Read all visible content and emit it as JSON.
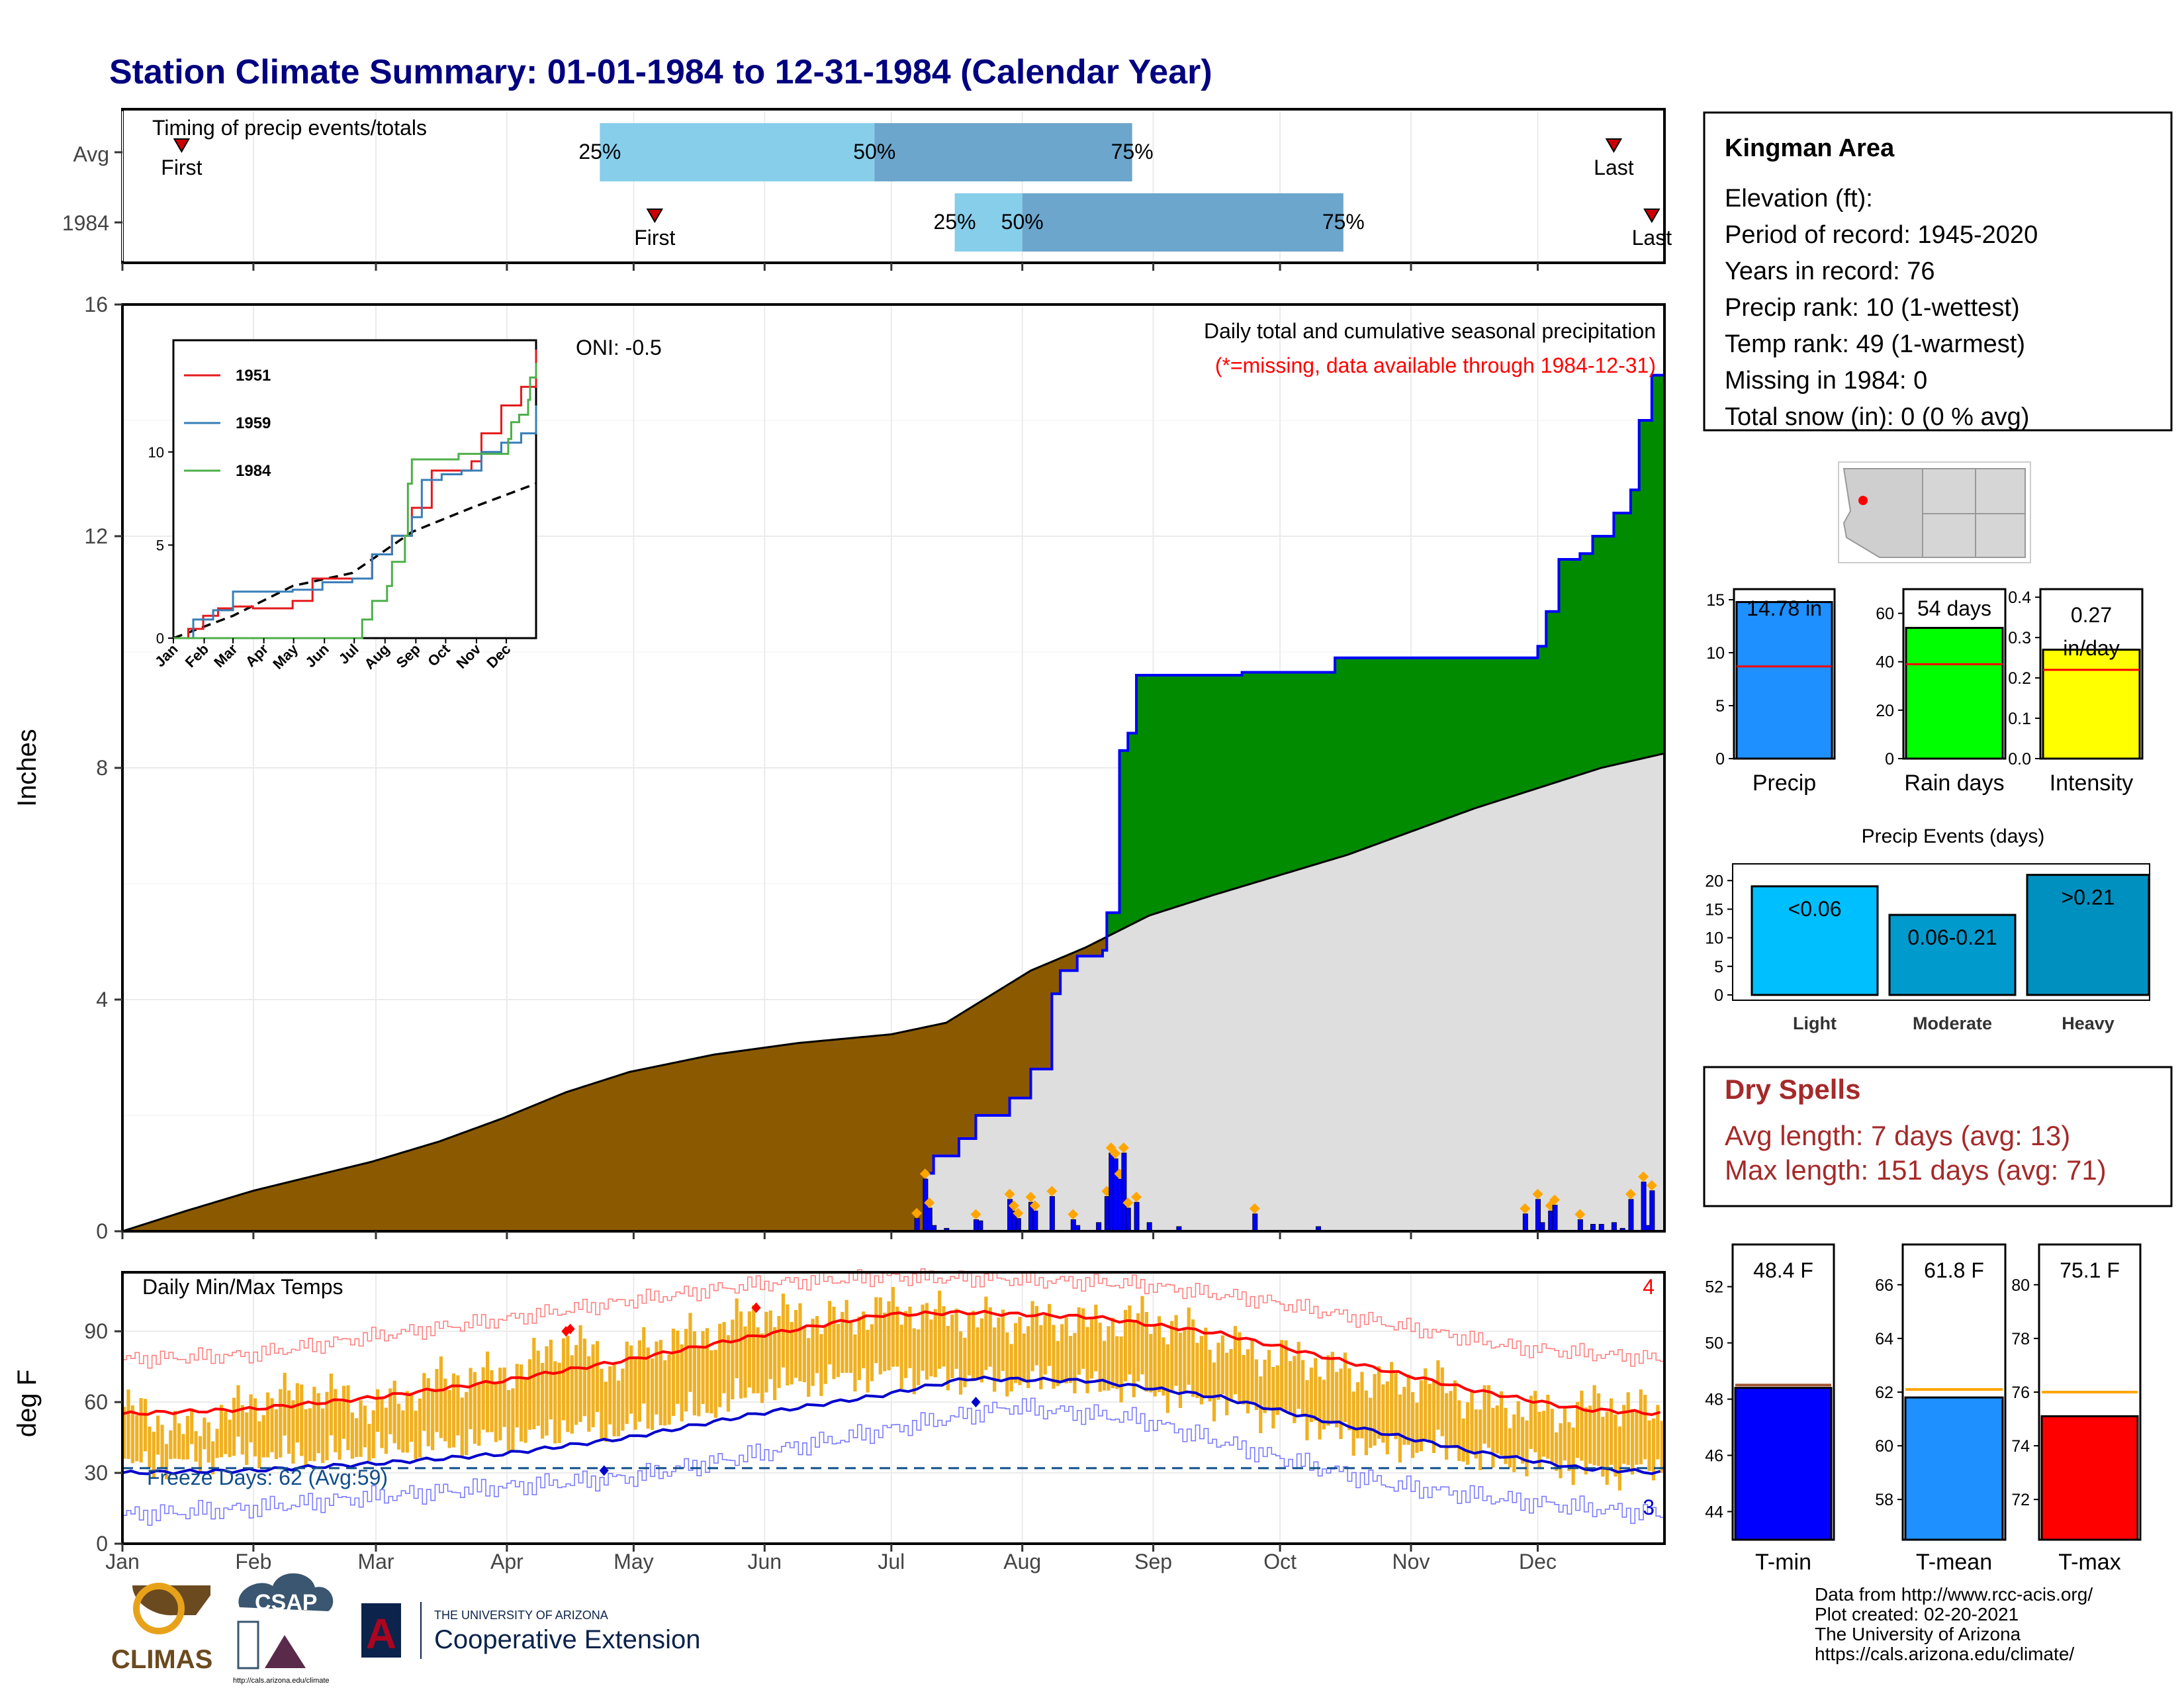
{
  "title": "Station Climate Summary: 01-01-1984 to 12-31-1984 (Calendar Year)",
  "months": [
    "Jan",
    "Feb",
    "Mar",
    "Apr",
    "May",
    "Jun",
    "Jul",
    "Aug",
    "Sep",
    "Oct",
    "Nov",
    "Dec"
  ],
  "timing": {
    "label": "Timing of precip events/totals",
    "rows": [
      {
        "name": "Avg",
        "first_doy": 14,
        "p25_doy": 113,
        "p50_doy": 178,
        "p75_doy": 239,
        "last_doy": 353,
        "first_label": "First",
        "last_label": "Last",
        "p25_label": "25%",
        "p50_label": "50%",
        "p75_label": "75%"
      },
      {
        "name": "1984",
        "first_doy": 126,
        "p25_doy": 197,
        "p50_doy": 213,
        "p75_doy": 289,
        "last_doy": 362,
        "first_label": "First",
        "last_label": "Last",
        "p25_label": "25%",
        "p50_label": "50%",
        "p75_label": "75%"
      }
    ]
  },
  "precip": {
    "ylabel": "Inches",
    "ylim": [
      0,
      16
    ],
    "yticks": [
      0,
      4,
      8,
      12,
      16
    ],
    "oni": "ONI: -0.5",
    "subtitle": "Daily total and cumulative seasonal precipitation",
    "missing_note": "(*=missing, data available through 1984-12-31)",
    "avg_cumulative": [
      [
        0,
        0
      ],
      [
        15,
        0.35
      ],
      [
        31,
        0.7
      ],
      [
        45,
        0.95
      ],
      [
        59,
        1.2
      ],
      [
        75,
        1.55
      ],
      [
        90,
        1.95
      ],
      [
        105,
        2.4
      ],
      [
        120,
        2.75
      ],
      [
        140,
        3.05
      ],
      [
        160,
        3.25
      ],
      [
        182,
        3.4
      ],
      [
        195,
        3.6
      ],
      [
        205,
        4.05
      ],
      [
        215,
        4.5
      ],
      [
        228,
        4.9
      ],
      [
        243,
        5.45
      ],
      [
        258,
        5.8
      ],
      [
        274,
        6.15
      ],
      [
        290,
        6.5
      ],
      [
        305,
        6.9
      ],
      [
        320,
        7.3
      ],
      [
        335,
        7.65
      ],
      [
        350,
        8.0
      ],
      [
        365,
        8.25
      ]
    ],
    "cumulative_1984": [
      [
        0,
        0
      ],
      [
        188,
        0
      ],
      [
        190,
        1.0
      ],
      [
        192,
        1.3
      ],
      [
        198,
        1.6
      ],
      [
        202,
        2.0
      ],
      [
        210,
        2.3
      ],
      [
        215,
        2.8
      ],
      [
        220,
        4.1
      ],
      [
        222,
        4.5
      ],
      [
        226,
        4.75
      ],
      [
        232,
        4.85
      ],
      [
        233,
        5.5
      ],
      [
        236,
        8.3
      ],
      [
        238,
        8.6
      ],
      [
        240,
        9.6
      ],
      [
        250,
        9.6
      ],
      [
        265,
        9.65
      ],
      [
        287,
        9.9
      ],
      [
        320,
        9.9
      ],
      [
        335,
        10.1
      ],
      [
        337,
        10.7
      ],
      [
        340,
        11.6
      ],
      [
        345,
        11.7
      ],
      [
        348,
        12.0
      ],
      [
        353,
        12.4
      ],
      [
        357,
        12.8
      ],
      [
        359,
        14.0
      ],
      [
        362,
        14.78
      ],
      [
        365,
        14.78
      ]
    ],
    "daily_bars": [
      [
        188,
        0.22
      ],
      [
        190,
        0.9
      ],
      [
        191,
        0.4
      ],
      [
        192,
        0.1
      ],
      [
        195,
        0.05
      ],
      [
        202,
        0.2
      ],
      [
        203,
        0.18
      ],
      [
        210,
        0.55
      ],
      [
        211,
        0.35
      ],
      [
        212,
        0.22
      ],
      [
        215,
        0.5
      ],
      [
        216,
        0.35
      ],
      [
        220,
        0.6
      ],
      [
        225,
        0.2
      ],
      [
        226,
        0.1
      ],
      [
        231,
        0.15
      ],
      [
        233,
        0.6
      ],
      [
        234,
        1.35
      ],
      [
        235,
        1.25
      ],
      [
        236,
        0.9
      ],
      [
        237,
        1.35
      ],
      [
        238,
        0.4
      ],
      [
        240,
        0.5
      ],
      [
        243,
        0.15
      ],
      [
        250,
        0.08
      ],
      [
        268,
        0.3
      ],
      [
        283,
        0.08
      ],
      [
        332,
        0.3
      ],
      [
        335,
        0.55
      ],
      [
        336,
        0.15
      ],
      [
        338,
        0.35
      ],
      [
        339,
        0.45
      ],
      [
        345,
        0.2
      ],
      [
        348,
        0.12
      ],
      [
        350,
        0.12
      ],
      [
        353,
        0.15
      ],
      [
        355,
        0.05
      ],
      [
        357,
        0.55
      ],
      [
        360,
        0.85
      ],
      [
        361,
        0.1
      ],
      [
        362,
        0.7
      ]
    ],
    "inset": {
      "ylim": [
        0,
        16
      ],
      "yticks": [
        0,
        5,
        10
      ],
      "avg": [
        [
          0,
          0
        ],
        [
          60,
          1.2
        ],
        [
          120,
          2.8
        ],
        [
          180,
          3.5
        ],
        [
          240,
          5.7
        ],
        [
          300,
          7.0
        ],
        [
          365,
          8.3
        ]
      ],
      "series": [
        {
          "name": "1951",
          "color": "#e41a1c",
          "points": [
            [
              0,
              0
            ],
            [
              15,
              0.5
            ],
            [
              30,
              1.2
            ],
            [
              45,
              1.6
            ],
            [
              60,
              1.7
            ],
            [
              80,
              1.6
            ],
            [
              100,
              1.6
            ],
            [
              120,
              2.0
            ],
            [
              140,
              3.2
            ],
            [
              180,
              3.2
            ],
            [
              200,
              4.5
            ],
            [
              220,
              5.5
            ],
            [
              240,
              7.0
            ],
            [
              260,
              9.0
            ],
            [
              300,
              9.5
            ],
            [
              310,
              11.0
            ],
            [
              330,
              12.5
            ],
            [
              350,
              13.5
            ],
            [
              365,
              15.5
            ]
          ]
        },
        {
          "name": "1959",
          "color": "#377eb8",
          "points": [
            [
              0,
              0
            ],
            [
              20,
              1.0
            ],
            [
              40,
              1.5
            ],
            [
              60,
              2.5
            ],
            [
              80,
              2.5
            ],
            [
              100,
              2.5
            ],
            [
              120,
              2.6
            ],
            [
              150,
              3.0
            ],
            [
              180,
              3.2
            ],
            [
              200,
              4.5
            ],
            [
              220,
              5.5
            ],
            [
              240,
              6.5
            ],
            [
              250,
              8.5
            ],
            [
              270,
              8.8
            ],
            [
              290,
              9.0
            ],
            [
              310,
              10.0
            ],
            [
              330,
              10.5
            ],
            [
              350,
              11.0
            ],
            [
              365,
              12.5
            ]
          ]
        },
        {
          "name": "1984",
          "color": "#4daf4a",
          "points": [
            [
              0,
              0
            ],
            [
              188,
              0
            ],
            [
              190,
              1.0
            ],
            [
              200,
              2.0
            ],
            [
              215,
              2.8
            ],
            [
              220,
              4.1
            ],
            [
              233,
              5.5
            ],
            [
              236,
              8.3
            ],
            [
              240,
              9.6
            ],
            [
              250,
              9.6
            ],
            [
              287,
              9.9
            ],
            [
              320,
              9.9
            ],
            [
              337,
              10.7
            ],
            [
              340,
              11.6
            ],
            [
              348,
              12.0
            ],
            [
              357,
              12.8
            ],
            [
              359,
              14.0
            ],
            [
              365,
              14.78
            ]
          ]
        }
      ]
    }
  },
  "temps": {
    "label": "Daily Min/Max Temps",
    "ylabel": "deg F",
    "ylim": [
      0,
      115
    ],
    "yticks": [
      0,
      30,
      60,
      90
    ],
    "freeze_text": "Freeze Days: 62 (Avg:59)",
    "record_high_count": "4",
    "record_low_count": "3",
    "freeze_line": 32,
    "avg_max": [
      [
        0,
        55
      ],
      [
        30,
        57
      ],
      [
        60,
        62
      ],
      [
        90,
        69
      ],
      [
        120,
        78
      ],
      [
        150,
        88
      ],
      [
        180,
        97
      ],
      [
        200,
        98
      ],
      [
        230,
        96
      ],
      [
        260,
        89
      ],
      [
        290,
        77
      ],
      [
        320,
        65
      ],
      [
        345,
        57
      ],
      [
        365,
        55
      ]
    ],
    "avg_min": [
      [
        0,
        30
      ],
      [
        30,
        31
      ],
      [
        60,
        34
      ],
      [
        90,
        38
      ],
      [
        120,
        45
      ],
      [
        150,
        55
      ],
      [
        180,
        63
      ],
      [
        200,
        70
      ],
      [
        230,
        69
      ],
      [
        260,
        62
      ],
      [
        290,
        50
      ],
      [
        320,
        39
      ],
      [
        345,
        32
      ],
      [
        365,
        30
      ]
    ],
    "record_max": [
      [
        0,
        78
      ],
      [
        30,
        80
      ],
      [
        60,
        88
      ],
      [
        90,
        95
      ],
      [
        120,
        103
      ],
      [
        150,
        110
      ],
      [
        180,
        113
      ],
      [
        210,
        112
      ],
      [
        240,
        110
      ],
      [
        270,
        103
      ],
      [
        300,
        93
      ],
      [
        330,
        83
      ],
      [
        365,
        78
      ]
    ],
    "record_min": [
      [
        0,
        12
      ],
      [
        30,
        15
      ],
      [
        60,
        20
      ],
      [
        90,
        24
      ],
      [
        120,
        28
      ],
      [
        150,
        38
      ],
      [
        180,
        48
      ],
      [
        210,
        58
      ],
      [
        240,
        53
      ],
      [
        270,
        38
      ],
      [
        300,
        25
      ],
      [
        330,
        18
      ],
      [
        365,
        12
      ]
    ],
    "yr_max": [
      [
        0,
        58
      ],
      [
        15,
        48
      ],
      [
        30,
        60
      ],
      [
        45,
        65
      ],
      [
        60,
        58
      ],
      [
        75,
        70
      ],
      [
        90,
        72
      ],
      [
        100,
        80
      ],
      [
        105,
        88
      ],
      [
        115,
        75
      ],
      [
        125,
        85
      ],
      [
        140,
        90
      ],
      [
        150,
        98
      ],
      [
        160,
        96
      ],
      [
        170,
        95
      ],
      [
        180,
        100
      ],
      [
        190,
        98
      ],
      [
        200,
        96
      ],
      [
        210,
        94
      ],
      [
        220,
        95
      ],
      [
        230,
        93
      ],
      [
        240,
        96
      ],
      [
        250,
        92
      ],
      [
        260,
        85
      ],
      [
        270,
        80
      ],
      [
        280,
        78
      ],
      [
        290,
        72
      ],
      [
        300,
        68
      ],
      [
        310,
        70
      ],
      [
        320,
        60
      ],
      [
        330,
        58
      ],
      [
        340,
        55
      ],
      [
        350,
        60
      ],
      [
        365,
        55
      ]
    ],
    "yr_min": [
      [
        0,
        33
      ],
      [
        15,
        35
      ],
      [
        30,
        38
      ],
      [
        45,
        37
      ],
      [
        60,
        40
      ],
      [
        75,
        42
      ],
      [
        90,
        45
      ],
      [
        100,
        46
      ],
      [
        105,
        50
      ],
      [
        115,
        48
      ],
      [
        125,
        52
      ],
      [
        140,
        58
      ],
      [
        150,
        65
      ],
      [
        160,
        68
      ],
      [
        170,
        70
      ],
      [
        180,
        72
      ],
      [
        190,
        70
      ],
      [
        200,
        70
      ],
      [
        210,
        68
      ],
      [
        220,
        70
      ],
      [
        230,
        67
      ],
      [
        240,
        66
      ],
      [
        250,
        62
      ],
      [
        260,
        60
      ],
      [
        270,
        55
      ],
      [
        280,
        52
      ],
      [
        290,
        45
      ],
      [
        300,
        40
      ],
      [
        310,
        42
      ],
      [
        320,
        36
      ],
      [
        330,
        35
      ],
      [
        340,
        33
      ],
      [
        350,
        30
      ],
      [
        365,
        32
      ]
    ],
    "high_markers": [
      [
        105,
        90
      ],
      [
        106,
        91
      ],
      [
        150,
        100
      ]
    ],
    "low_markers": [
      [
        114,
        31
      ],
      [
        202,
        60
      ]
    ]
  },
  "station": {
    "name": "Kingman Area",
    "lines": [
      "Elevation (ft):",
      "Period of record: 1945-2020",
      "Years in record: 76",
      "Precip rank: 10 (1-wettest)",
      "Temp rank: 49 (1-warmest)",
      "Missing in 1984: 0",
      "Total snow (in): 0 (0 % avg)"
    ]
  },
  "summary_bars": [
    {
      "label": "Precip",
      "value": 14.78,
      "avg": 8.7,
      "ylim": [
        0,
        16
      ],
      "yticks": [
        0,
        5,
        10,
        15
      ],
      "value_label": "14.78 in",
      "color": "#1e90ff"
    },
    {
      "label": "Rain days",
      "value": 54,
      "avg": 39,
      "ylim": [
        0,
        70
      ],
      "yticks": [
        0,
        20,
        40,
        60
      ],
      "value_label": "54 days",
      "color": "#00ff00"
    },
    {
      "label": "Intensity",
      "value": 0.27,
      "avg": 0.22,
      "ylim": [
        0,
        0.42
      ],
      "yticks": [
        "0.0",
        "0.1",
        "0.2",
        "0.3",
        "0.4"
      ],
      "value_label": "0.27 in/day",
      "color": "#ffff00"
    }
  ],
  "events": {
    "title": "Precip Events (days)",
    "categories": [
      "Light",
      "Moderate",
      "Heavy"
    ],
    "values": [
      19,
      14,
      21
    ],
    "labels": [
      "<0.06",
      "0.06-0.21",
      ">0.21"
    ],
    "colors": [
      "#00bfff",
      "#009acd",
      "#0090c0"
    ],
    "ylim": [
      0,
      22
    ],
    "yticks": [
      0,
      5,
      10,
      15,
      20
    ]
  },
  "dry_spells": {
    "title": "Dry Spells",
    "avg": "Avg length: 7 days (avg: 13)",
    "max": "Max length: 151 days (avg: 71)"
  },
  "temp_bars": [
    {
      "label": "T-min",
      "value": 48.4,
      "avg": 48.5,
      "ylim": [
        43,
        53.5
      ],
      "yticks": [
        44,
        46,
        48,
        50,
        52
      ],
      "value_label": "48.4 F",
      "color": "#0000ff",
      "line_color": "#a0522d"
    },
    {
      "label": "T-mean",
      "value": 61.8,
      "avg": 62.1,
      "ylim": [
        56.5,
        67.5
      ],
      "yticks": [
        58,
        60,
        62,
        64,
        66
      ],
      "value_label": "61.8 F",
      "color": "#1e90ff",
      "line_color": "#ffa500"
    },
    {
      "label": "T-max",
      "value": 75.1,
      "avg": 76,
      "ylim": [
        70.5,
        81.5
      ],
      "yticks": [
        72,
        74,
        76,
        78,
        80
      ],
      "value_label": "75.1 F",
      "color": "#ff0000",
      "line_color": "#ffa500"
    }
  ],
  "footer": {
    "logo_climas": "CLIMAS",
    "logo_csap": "CSAP",
    "csap_url": "http://cals.arizona.edu/climate",
    "ua_small": "THE UNIVERSITY OF ARIZONA",
    "ua_big": "Cooperative Extension",
    "ua_mark": "A",
    "credits": [
      "Data from http://www.rcc-acis.org/",
      "Plot created: 02-20-2021",
      "The University of Arizona",
      "https://cals.arizona.edu/climate/"
    ]
  }
}
